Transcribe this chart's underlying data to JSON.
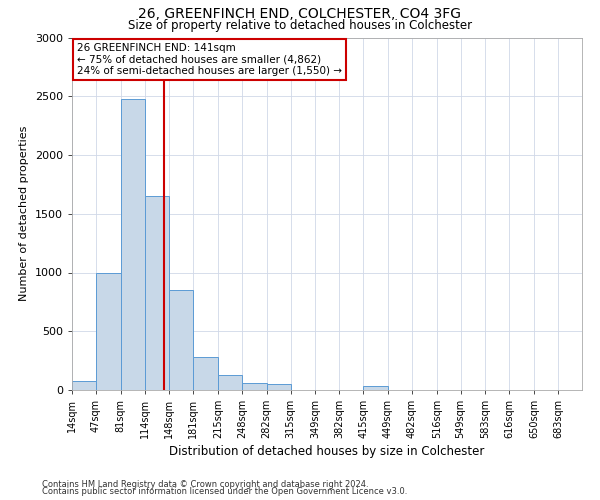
{
  "title1": "26, GREENFINCH END, COLCHESTER, CO4 3FG",
  "title2": "Size of property relative to detached houses in Colchester",
  "xlabel": "Distribution of detached houses by size in Colchester",
  "ylabel": "Number of detached properties",
  "footnote1": "Contains HM Land Registry data © Crown copyright and database right 2024.",
  "footnote2": "Contains public sector information licensed under the Open Government Licence v3.0.",
  "bin_labels": [
    "14sqm",
    "47sqm",
    "81sqm",
    "114sqm",
    "148sqm",
    "181sqm",
    "215sqm",
    "248sqm",
    "282sqm",
    "315sqm",
    "349sqm",
    "382sqm",
    "415sqm",
    "449sqm",
    "482sqm",
    "516sqm",
    "549sqm",
    "583sqm",
    "616sqm",
    "650sqm",
    "683sqm"
  ],
  "bar_values": [
    75,
    1000,
    2475,
    1650,
    850,
    285,
    130,
    60,
    50,
    0,
    0,
    0,
    30,
    0,
    0,
    0,
    0,
    0,
    0,
    0,
    0
  ],
  "bin_edges": [
    14,
    47,
    81,
    114,
    148,
    181,
    215,
    248,
    282,
    315,
    349,
    382,
    415,
    449,
    482,
    516,
    549,
    583,
    616,
    650,
    683,
    716
  ],
  "property_size": 141,
  "annotation_line1": "26 GREENFINCH END: 141sqm",
  "annotation_line2": "← 75% of detached houses are smaller (4,862)",
  "annotation_line3": "24% of semi-detached houses are larger (1,550) →",
  "bar_color": "#c8d8e8",
  "bar_edge_color": "#5b9bd5",
  "vline_color": "#cc0000",
  "annotation_box_color": "#cc0000",
  "grid_color": "#d0d8e8",
  "ylim": [
    0,
    3000
  ],
  "yticks": [
    0,
    500,
    1000,
    1500,
    2000,
    2500,
    3000
  ],
  "title1_fontsize": 10,
  "title2_fontsize": 8.5,
  "xlabel_fontsize": 8.5,
  "ylabel_fontsize": 8,
  "xtick_fontsize": 7,
  "ytick_fontsize": 8,
  "annotation_fontsize": 7.5,
  "footnote_fontsize": 6
}
